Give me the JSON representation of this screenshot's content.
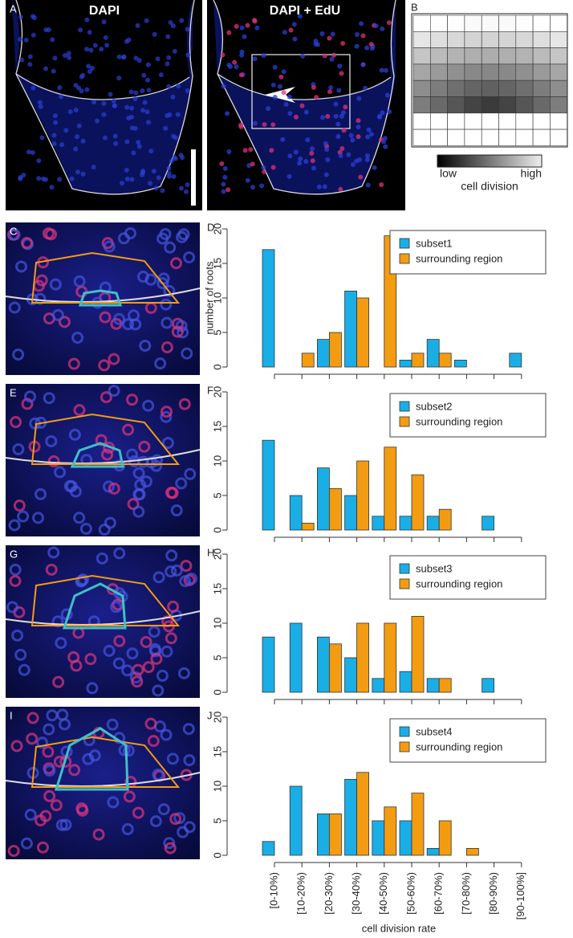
{
  "panels": {
    "a": "A",
    "a_title": "DAPI",
    "a2_title": "DAPI + EdU",
    "b": "B",
    "scale_low": "low",
    "scale_high": "high",
    "scale_label": "cell division",
    "c": "C",
    "e": "E",
    "g": "G",
    "i": "I"
  },
  "chart_data": [
    {
      "type": "bar",
      "panel": "D",
      "ylabel": "number of roots",
      "ylim": [
        0,
        20
      ],
      "yticks": [
        0,
        5,
        10,
        15,
        20
      ],
      "legend": "upper right",
      "series": [
        {
          "name": "subset1",
          "color": "#1aaee6",
          "values": [
            17,
            0,
            4,
            11,
            0,
            1,
            4,
            1,
            0,
            2
          ]
        },
        {
          "name": "surrounding region",
          "color": "#f39c12",
          "values": [
            0,
            2,
            5,
            10,
            19,
            2,
            2,
            0,
            0,
            0
          ]
        }
      ]
    },
    {
      "type": "bar",
      "panel": "F",
      "ylim": [
        0,
        20
      ],
      "yticks": [
        0,
        5,
        10,
        15,
        20
      ],
      "legend": "upper right",
      "series": [
        {
          "name": "subset2",
          "color": "#1aaee6",
          "values": [
            13,
            5,
            9,
            5,
            2,
            2,
            2,
            0,
            2,
            0
          ]
        },
        {
          "name": "surrounding region",
          "color": "#f39c12",
          "values": [
            0,
            1,
            6,
            10,
            12,
            8,
            3,
            0,
            0,
            0
          ]
        }
      ]
    },
    {
      "type": "bar",
      "panel": "H",
      "ylim": [
        0,
        20
      ],
      "yticks": [
        0,
        5,
        10,
        15,
        20
      ],
      "legend": "upper right",
      "series": [
        {
          "name": "subset3",
          "color": "#1aaee6",
          "values": [
            8,
            10,
            8,
            5,
            2,
            3,
            2,
            0,
            2,
            0
          ]
        },
        {
          "name": "surrounding region",
          "color": "#f39c12",
          "values": [
            0,
            0,
            7,
            10,
            10,
            11,
            2,
            0,
            0,
            0
          ]
        }
      ]
    },
    {
      "type": "bar",
      "panel": "J",
      "ylim": [
        0,
        20
      ],
      "yticks": [
        0,
        5,
        10,
        15,
        20
      ],
      "legend": "upper right",
      "xlabel": "cell division rate",
      "categories": [
        "[0-10%)",
        "[10-20%)",
        "[20-30%)",
        "[30-40%)",
        "[40-50%)",
        "[50-60%)",
        "[60-70%)",
        "[70-80%)",
        "[80-90%)",
        "[90-100%]"
      ],
      "series": [
        {
          "name": "subset4",
          "color": "#1aaee6",
          "values": [
            2,
            10,
            6,
            11,
            5,
            5,
            1,
            0,
            0,
            0
          ]
        },
        {
          "name": "surrounding region",
          "color": "#f39c12",
          "values": [
            0,
            0,
            6,
            12,
            7,
            9,
            5,
            1,
            0,
            0
          ]
        }
      ]
    }
  ]
}
